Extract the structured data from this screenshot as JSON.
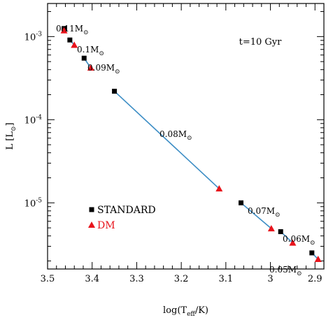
{
  "chart_data": {
    "type": "scatter",
    "xlabel": "log(T",
    "xlabel_sub": "eff",
    "xlabel_tail": "/K)",
    "ylabel": "L [L",
    "ylabel_sun": "⊙",
    "ylabel_tail": "]",
    "annotation": "t=10 Gyr",
    "x_axis": {
      "reversed": true,
      "xlim": [
        3.5,
        2.88
      ],
      "ticks": [
        "3.5",
        "3.4",
        "3.3",
        "3.2",
        "3.1",
        "3",
        "2.9"
      ],
      "tick_values": [
        3.5,
        3.4,
        3.3,
        3.2,
        3.1,
        3.0,
        2.9
      ]
    },
    "y_axis": {
      "log": true,
      "ylim": [
        1.6e-06,
        0.0025
      ],
      "ticks": [
        "10",
        "10",
        "10"
      ],
      "tick_exps": [
        "-3",
        "-4",
        "-5"
      ],
      "tick_values": [
        0.001,
        0.0001,
        1e-05
      ]
    },
    "grid": false,
    "series": [
      {
        "name": "STANDARD",
        "marker": "square",
        "color": "#000000",
        "points": [
          {
            "x": 3.463,
            "y": 0.00125
          },
          {
            "x": 3.45,
            "y": 0.00091
          },
          {
            "x": 3.418,
            "y": 0.00055
          },
          {
            "x": 3.35,
            "y": 0.00022
          },
          {
            "x": 3.066,
            "y": 1e-05
          },
          {
            "x": 2.977,
            "y": 4.5e-06
          },
          {
            "x": 2.907,
            "y": 2.5e-06
          }
        ]
      },
      {
        "name": "DM",
        "marker": "triangle",
        "color": "#e8141c",
        "points": [
          {
            "x": 3.463,
            "y": 0.00118
          },
          {
            "x": 3.44,
            "y": 0.00079
          },
          {
            "x": 3.403,
            "y": 0.00042
          },
          {
            "x": 3.115,
            "y": 1.48e-05
          },
          {
            "x": 2.998,
            "y": 4.9e-06
          },
          {
            "x": 2.95,
            "y": 3.3e-06
          },
          {
            "x": 2.893,
            "y": 2.1e-06
          }
        ]
      }
    ],
    "connector_color": "#3c8dc5",
    "mass_labels": [
      {
        "text": "0.11M",
        "sun": "⊙"
      },
      {
        "text": "0.1M",
        "sun": "⊙"
      },
      {
        "text": "0.09M",
        "sun": "⊙"
      },
      {
        "text": "0.08M",
        "sun": "⊙"
      },
      {
        "text": "0.07M",
        "sun": "⊙"
      },
      {
        "text": "0.06M",
        "sun": "⊙"
      },
      {
        "text": "0.05M",
        "sun": "⊙"
      }
    ],
    "legend": [
      {
        "label": "STANDARD",
        "marker": "square",
        "color": "#000000"
      },
      {
        "label": "DM",
        "marker": "triangle",
        "color": "#e8141c"
      }
    ]
  }
}
